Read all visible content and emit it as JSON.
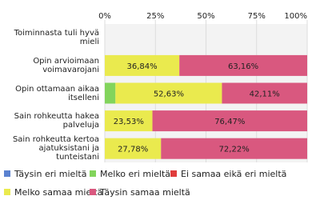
{
  "chart_data": {
    "type": "stacked_bar_horizontal",
    "categories": [
      "Toiminnasta tuli hyvä mieli",
      "Opin arvioimaan voimavarojani",
      "Opin ottamaan aikaa itselleni",
      "Sain rohkeutta hakea palveluja",
      "Sain rohkeutta kertoa ajatuksistani ja tunteistani"
    ],
    "series": [
      {
        "name": "Täysin eri mieltä",
        "color": "#5b82d0",
        "values": [
          null,
          null,
          null,
          null,
          null
        ]
      },
      {
        "name": "Melko eri mieltä",
        "color": "#82d45c",
        "values": [
          null,
          null,
          5.26,
          null,
          null
        ]
      },
      {
        "name": "Ei samaa eikä eri mieltä",
        "color": "#e03c3c",
        "values": [
          null,
          null,
          null,
          null,
          null
        ]
      },
      {
        "name": "Melko samaa mieltä",
        "color": "#eaea4e",
        "values": [
          null,
          36.84,
          52.63,
          23.53,
          27.78
        ],
        "value_labels": [
          null,
          "36,84%",
          "52,63%",
          "23,53%",
          "27,78%"
        ]
      },
      {
        "name": "Täysin samaa mieltä",
        "color": "#d9587f",
        "values": [
          null,
          63.16,
          42.11,
          76.47,
          72.22
        ],
        "value_labels": [
          null,
          "63,16%",
          "42,11%",
          "76,47%",
          "72,22%"
        ]
      }
    ],
    "xlim": [
      0,
      100
    ],
    "xticks": [
      {
        "value": 0,
        "label": "0%"
      },
      {
        "value": 25,
        "label": "25%"
      },
      {
        "value": 50,
        "label": "50%"
      },
      {
        "value": 75,
        "label": "75%"
      },
      {
        "value": 100,
        "label": "100%"
      }
    ],
    "grid": true
  }
}
